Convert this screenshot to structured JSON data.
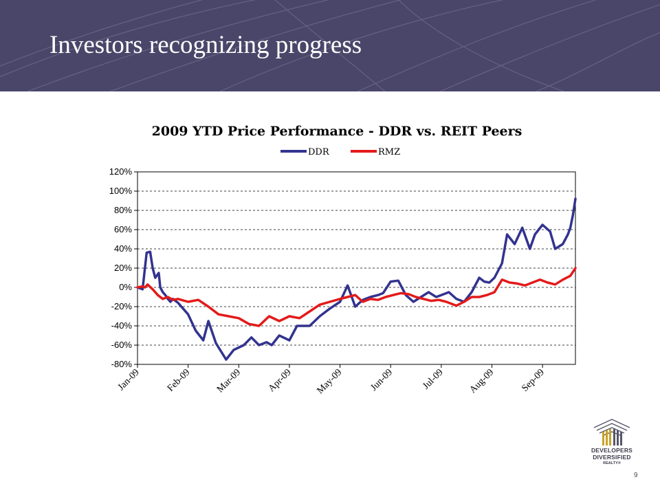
{
  "slide": {
    "title": "Investors recognizing progress",
    "page_number": "9",
    "header_color": "#4a4669"
  },
  "logo": {
    "name": "Developers Diversified Realty",
    "line1": "DEVELOPERS",
    "line2": "DIVERSIFIED",
    "line3": "REALTY®",
    "icon": "ddr-logo-icon"
  },
  "chart_data": {
    "type": "line",
    "title": "2009 YTD Price Performance - DDR vs. REIT Peers",
    "xlabel": "",
    "ylabel": "",
    "ylim": [
      -80,
      120
    ],
    "y_ticks": [
      "120%",
      "100%",
      "80%",
      "60%",
      "40%",
      "20%",
      "0%",
      "-20%",
      "-40%",
      "-60%",
      "-80%"
    ],
    "x_ticks": [
      "Jan-09",
      "Feb-09",
      "Mar-09",
      "Apr-09",
      "May-09",
      "Jun-09",
      "Jul-09",
      "Aug-09",
      "Sep-09"
    ],
    "grid": "horizontal dashed",
    "legend": "top-center",
    "series": [
      {
        "name": "DDR",
        "color": "#33338f",
        "x": [
          0,
          0.1,
          0.18,
          0.25,
          0.3,
          0.35,
          0.42,
          0.45,
          0.5,
          0.55,
          0.6,
          0.65,
          0.7,
          0.8,
          1.0,
          1.15,
          1.3,
          1.4,
          1.55,
          1.75,
          1.9,
          2.1,
          2.25,
          2.4,
          2.55,
          2.65,
          2.8,
          3.0,
          3.15,
          3.4,
          3.6,
          3.8,
          4.0,
          4.15,
          4.3,
          4.45,
          4.6,
          4.75,
          4.85,
          5.0,
          5.15,
          5.3,
          5.45,
          5.6,
          5.75,
          5.9,
          6.0,
          6.15,
          6.3,
          6.45,
          6.6,
          6.75,
          6.85,
          6.95,
          7.05,
          7.2,
          7.3,
          7.45,
          7.6,
          7.75,
          7.85,
          8.0,
          8.15,
          8.25,
          8.4,
          8.5,
          8.55,
          8.6,
          8.65
        ],
        "values": [
          0,
          -2,
          36,
          37,
          20,
          10,
          15,
          0,
          -5,
          -8,
          -12,
          -15,
          -12,
          -16,
          -28,
          -45,
          -55,
          -35,
          -58,
          -75,
          -65,
          -60,
          -52,
          -60,
          -57,
          -60,
          -50,
          -55,
          -40,
          -40,
          -30,
          -22,
          -15,
          2,
          -20,
          -13,
          -10,
          -8,
          -6,
          6,
          7,
          -8,
          -15,
          -10,
          -5,
          -10,
          -8,
          -5,
          -12,
          -15,
          -5,
          10,
          6,
          5,
          10,
          25,
          55,
          45,
          62,
          40,
          55,
          65,
          58,
          40,
          45,
          55,
          62,
          75,
          92
        ]
      },
      {
        "name": "RMZ",
        "color": "#e31a1a",
        "x": [
          0,
          0.1,
          0.15,
          0.2,
          0.3,
          0.4,
          0.5,
          0.6,
          0.7,
          0.8,
          1.0,
          1.2,
          1.4,
          1.6,
          1.8,
          2.0,
          2.2,
          2.4,
          2.6,
          2.8,
          3.0,
          3.2,
          3.4,
          3.6,
          3.8,
          4.0,
          4.15,
          4.3,
          4.45,
          4.6,
          4.75,
          4.9,
          5.05,
          5.2,
          5.35,
          5.5,
          5.65,
          5.8,
          5.95,
          6.1,
          6.3,
          6.45,
          6.6,
          6.75,
          6.9,
          7.05,
          7.2,
          7.35,
          7.5,
          7.65,
          7.8,
          7.95,
          8.1,
          8.25,
          8.4,
          8.55,
          8.65
        ],
        "values": [
          0,
          1,
          0,
          3,
          -2,
          -8,
          -12,
          -10,
          -13,
          -12,
          -15,
          -13,
          -20,
          -28,
          -30,
          -32,
          -38,
          -40,
          -30,
          -35,
          -30,
          -32,
          -25,
          -18,
          -15,
          -12,
          -10,
          -8,
          -15,
          -12,
          -13,
          -10,
          -8,
          -6,
          -7,
          -10,
          -12,
          -14,
          -13,
          -15,
          -19,
          -15,
          -10,
          -10,
          -8,
          -5,
          8,
          5,
          4,
          2,
          5,
          8,
          5,
          3,
          8,
          12,
          20
        ]
      }
    ]
  }
}
